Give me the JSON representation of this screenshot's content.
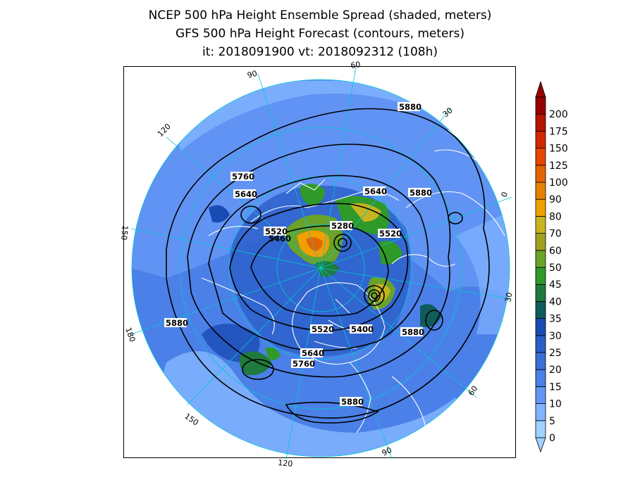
{
  "title": {
    "line1": "NCEP 500 hPa Height Ensemble Spread (shaded, meters)",
    "line2": "GFS 500 hPa Height Forecast (contours, meters)",
    "line3": "it: 2018091900      vt: 2018092312 (108h)"
  },
  "colorbar": {
    "levels": [
      "0",
      "5",
      "10",
      "15",
      "20",
      "25",
      "30",
      "35",
      "40",
      "45",
      "50",
      "60",
      "70",
      "80",
      "90",
      "100",
      "125",
      "150",
      "175",
      "200"
    ],
    "colors": [
      "#a0d2ff",
      "#82b4ff",
      "#6496f5",
      "#4b80e8",
      "#3a6fd8",
      "#2a5ec8",
      "#1a4bb4",
      "#0f5c5a",
      "#1f7a3c",
      "#2f9a2a",
      "#6aa22a",
      "#a0a01e",
      "#c8b41e",
      "#f0a000",
      "#e68200",
      "#e66400",
      "#e64600",
      "#d22800",
      "#b41400",
      "#960000"
    ]
  },
  "longitude_labels": [
    "60",
    "30",
    "0",
    "30",
    "60",
    "90",
    "120",
    "150",
    "180",
    "150",
    "120",
    "90"
  ],
  "contour_labels": [
    "5880",
    "5880",
    "5760",
    "5640",
    "5640",
    "5520",
    "5460",
    "5280",
    "5520",
    "5880",
    "5520",
    "5400",
    "5880",
    "5640",
    "5760",
    "5880"
  ]
}
